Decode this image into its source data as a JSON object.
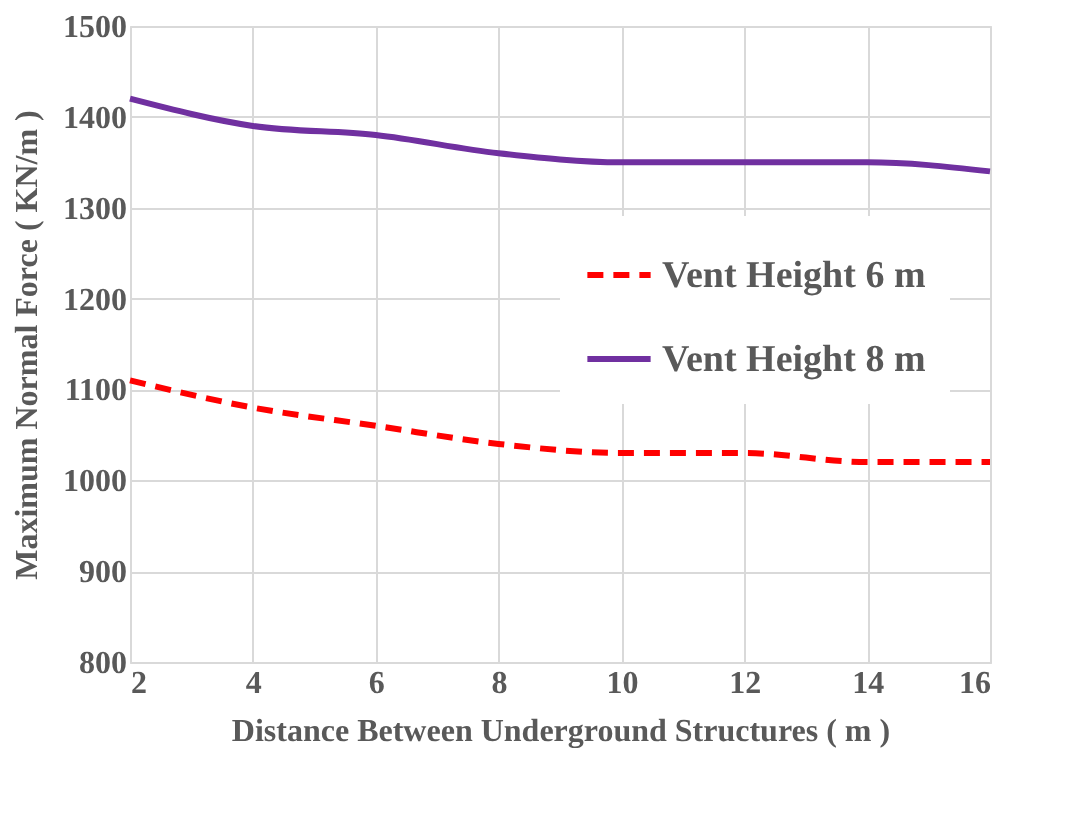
{
  "chart_data": {
    "type": "line",
    "xlabel": "Distance Between Underground Structures ( m )",
    "ylabel": "Maximum Normal Force ( KN/m )",
    "x": [
      2,
      4,
      6,
      8,
      10,
      12,
      14,
      16
    ],
    "series": [
      {
        "name": "Vent Height 6 m",
        "color": "#ff0000",
        "line_style": "dashed",
        "values": [
          1110,
          1080,
          1060,
          1040,
          1030,
          1030,
          1020,
          1020
        ]
      },
      {
        "name": "Vent Height 8 m",
        "color": "#7030a0",
        "line_style": "solid",
        "values": [
          1420,
          1390,
          1380,
          1360,
          1350,
          1350,
          1350,
          1340
        ]
      }
    ],
    "xlim": [
      2,
      16
    ],
    "xticks": [
      2,
      4,
      6,
      8,
      10,
      12,
      14,
      16
    ],
    "ylim": [
      800,
      1500
    ],
    "yticks": [
      800,
      900,
      1000,
      1100,
      1200,
      1300,
      1400,
      1500
    ],
    "grid": true,
    "legend": "right",
    "marker": "none"
  }
}
